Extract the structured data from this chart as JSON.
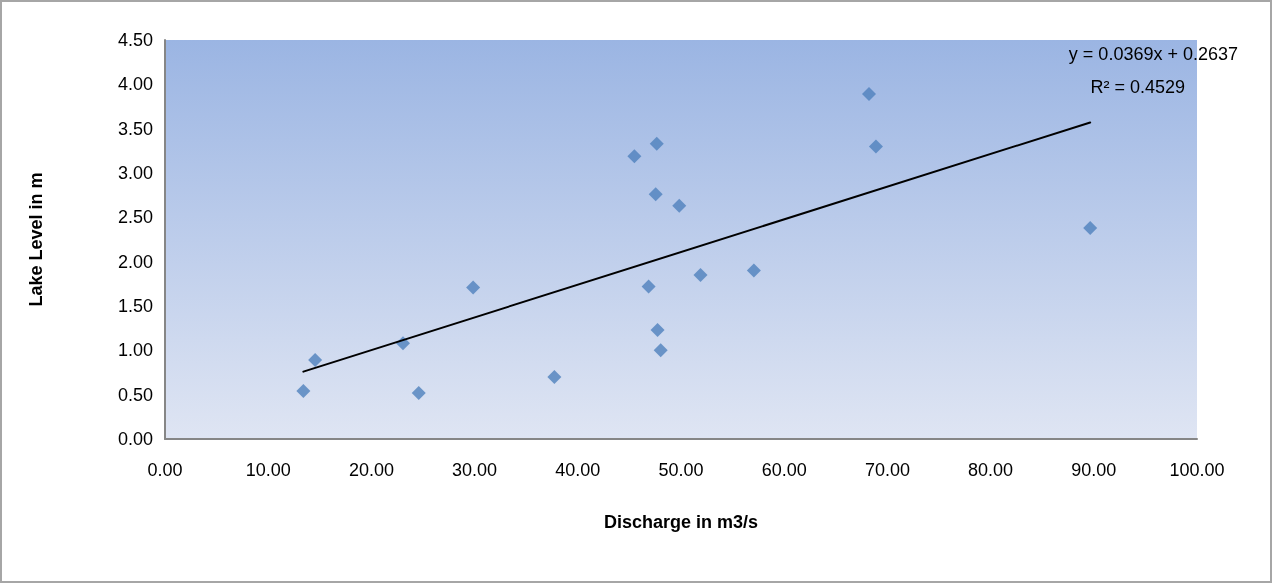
{
  "chart_data": {
    "type": "scatter",
    "xlabel": "Discharge in m3/s",
    "ylabel": "Lake Level in m",
    "series": [
      {
        "color": "#4f81bd",
        "marker": "diamond",
        "x": [
          13.41,
          14.55,
          23.06,
          24.59,
          29.86,
          37.73,
          45.48,
          47.65,
          47.55,
          49.83,
          46.86,
          47.73,
          48.03,
          51.89,
          57.06,
          68.22,
          68.89,
          89.65
        ],
        "values": [
          0.54,
          0.89,
          1.08,
          0.52,
          1.71,
          0.7,
          3.19,
          3.33,
          2.76,
          2.63,
          1.72,
          1.23,
          1.0,
          1.85,
          1.9,
          3.89,
          3.3,
          2.38
        ]
      },
      {
        "type": "line",
        "color": "#000000",
        "marker": "none",
        "x": [
          13.41,
          89.65
        ],
        "values": [
          0.76,
          3.57
        ]
      }
    ],
    "annotations": [
      "y = 0.0369x + 0.2637",
      "R² = 0.4529"
    ],
    "xlim": [
      0,
      100
    ],
    "xticks": [
      {
        "value": 0,
        "label": "0.00"
      },
      {
        "value": 10,
        "label": "10.00"
      },
      {
        "value": 20,
        "label": "20.00"
      },
      {
        "value": 30,
        "label": "30.00"
      },
      {
        "value": 40,
        "label": "40.00"
      },
      {
        "value": 50,
        "label": "50.00"
      },
      {
        "value": 60,
        "label": "60.00"
      },
      {
        "value": 70,
        "label": "70.00"
      },
      {
        "value": 80,
        "label": "80.00"
      },
      {
        "value": 90,
        "label": "90.00"
      },
      {
        "value": 100,
        "label": "100.00"
      }
    ],
    "ylim": [
      0,
      4.5
    ],
    "yticks": [
      {
        "value": 0,
        "label": "0.00"
      },
      {
        "value": 0.5,
        "label": "0.50"
      },
      {
        "value": 1,
        "label": "1.00"
      },
      {
        "value": 1.5,
        "label": "1.50"
      },
      {
        "value": 2,
        "label": "2.00"
      },
      {
        "value": 2.5,
        "label": "2.50"
      },
      {
        "value": 3,
        "label": "3.00"
      },
      {
        "value": 3.5,
        "label": "3.50"
      },
      {
        "value": 4,
        "label": "4.00"
      },
      {
        "value": 4.5,
        "label": "4.50"
      }
    ],
    "grid": false
  }
}
